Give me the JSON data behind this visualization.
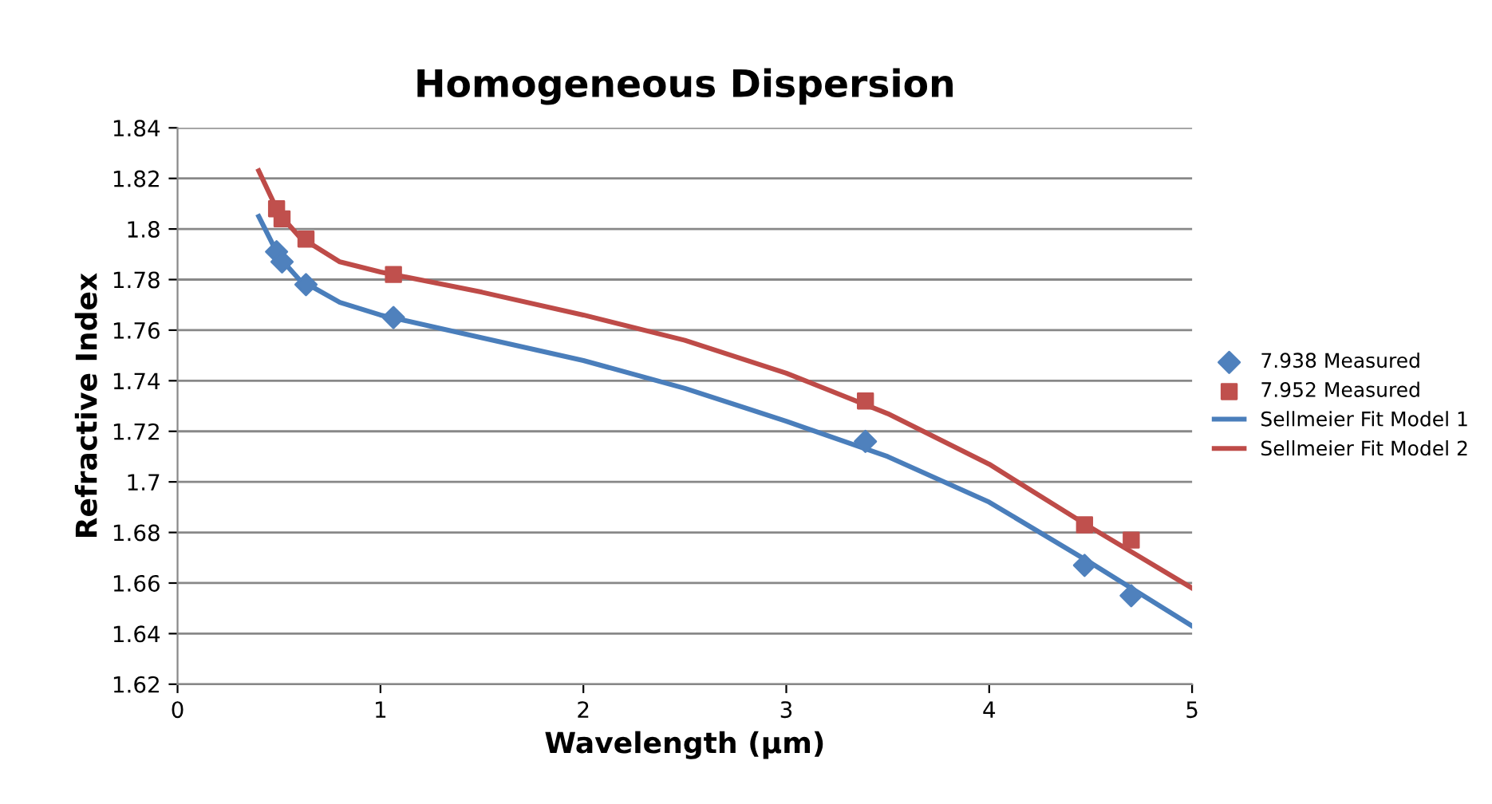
{
  "chart_data": {
    "type": "scatter",
    "title": "Homogeneous Dispersion",
    "xlabel": "Wavelength (µm)",
    "ylabel": "Refractive Index",
    "xlim": [
      0,
      5
    ],
    "xticks": [
      0,
      1,
      2,
      3,
      4,
      5
    ],
    "ylim": [
      1.62,
      1.84
    ],
    "yticks": [
      1.62,
      1.64,
      1.66,
      1.68,
      1.7,
      1.72,
      1.74,
      1.76,
      1.78,
      1.8,
      1.82,
      1.84
    ],
    "grid": "y",
    "legend": "right",
    "series": [
      {
        "name": "7.938 Measured",
        "marker": "diamond",
        "color": "#4f81bd",
        "x": [
          0.488,
          0.515,
          0.633,
          1.064,
          3.39,
          4.47,
          4.7
        ],
        "values": [
          1.791,
          1.787,
          1.778,
          1.765,
          1.716,
          1.667,
          1.655
        ]
      },
      {
        "name": "7.952 Measured",
        "marker": "square",
        "color": "#c0504d",
        "x": [
          0.488,
          0.515,
          0.633,
          1.064,
          3.39,
          4.47,
          4.7
        ],
        "values": [
          1.808,
          1.804,
          1.796,
          1.782,
          1.732,
          1.683,
          1.677
        ]
      },
      {
        "name": "Sellmeier Fit Model 1",
        "type": "line",
        "marker": "none",
        "line_style": "solid",
        "color": "#4a7ebb",
        "x": [
          0.4,
          0.5,
          0.6,
          0.8,
          1.0,
          1.5,
          2.0,
          2.5,
          3.0,
          3.5,
          4.0,
          4.5,
          5.0
        ],
        "values": [
          1.805,
          1.789,
          1.78,
          1.771,
          1.766,
          1.757,
          1.748,
          1.737,
          1.724,
          1.71,
          1.692,
          1.668,
          1.643
        ]
      },
      {
        "name": "Sellmeier Fit Model 2",
        "type": "line",
        "marker": "none",
        "line_style": "solid",
        "color": "#be4b48",
        "x": [
          0.4,
          0.5,
          0.6,
          0.8,
          1.0,
          1.5,
          2.0,
          2.5,
          3.0,
          3.5,
          4.0,
          4.5,
          5.0
        ],
        "values": [
          1.823,
          1.806,
          1.797,
          1.787,
          1.783,
          1.775,
          1.766,
          1.756,
          1.743,
          1.727,
          1.707,
          1.682,
          1.658
        ]
      }
    ]
  }
}
